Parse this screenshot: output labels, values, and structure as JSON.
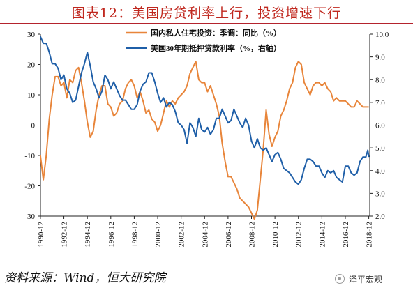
{
  "title": "图表12：美国房贷利率上行，投资增速下行",
  "source": "资料来源：Wind，恒大研究院",
  "brand": {
    "text": "泽平宏观",
    "icon": "wechat-icon"
  },
  "colors": {
    "series1": "#E8853A",
    "series2": "#1F5FA8",
    "title": "#C0281F"
  },
  "chart_data": {
    "type": "line",
    "grid": false,
    "legend_position": "top-center",
    "x_ticks": [
      "1990-12",
      "1992-12",
      "1994-12",
      "1996-12",
      "1998-12",
      "2000-12",
      "2002-12",
      "2004-12",
      "2006-12",
      "2008-12",
      "2010-12",
      "2012-12",
      "2014-12",
      "2016-12",
      "2018-12"
    ],
    "x_range": [
      1990.92,
      2019.0
    ],
    "y_left": {
      "ticks": [
        30,
        20,
        10,
        0,
        -10,
        -20,
        -30
      ],
      "range": [
        -30,
        30
      ]
    },
    "y_right": {
      "ticks": [
        "10.0",
        "9.0",
        "8.0",
        "7.0",
        "6.0",
        "5.0",
        "4.0",
        "3.0",
        "2.0"
      ],
      "range": [
        2.0,
        10.0
      ]
    },
    "series": [
      {
        "name": "国内私人住宅投资：季调：同比（%）",
        "axis": "left",
        "points": [
          [
            "1990-12",
            -10
          ],
          [
            "1991-03",
            -18
          ],
          [
            "1991-06",
            -10
          ],
          [
            "1991-09",
            2
          ],
          [
            "1991-12",
            10
          ],
          [
            "1992-03",
            16
          ],
          [
            "1992-06",
            16
          ],
          [
            "1992-09",
            13
          ],
          [
            "1992-12",
            14
          ],
          [
            "1993-03",
            9
          ],
          [
            "1993-06",
            15
          ],
          [
            "1993-09",
            14
          ],
          [
            "1993-12",
            18
          ],
          [
            "1994-03",
            19
          ],
          [
            "1994-06",
            14
          ],
          [
            "1994-09",
            8
          ],
          [
            "1994-12",
            1
          ],
          [
            "1995-03",
            -4
          ],
          [
            "1995-06",
            -2
          ],
          [
            "1995-09",
            5
          ],
          [
            "1995-12",
            10
          ],
          [
            "1996-03",
            13
          ],
          [
            "1996-06",
            13
          ],
          [
            "1996-09",
            7
          ],
          [
            "1996-12",
            6
          ],
          [
            "1997-03",
            3
          ],
          [
            "1997-06",
            4
          ],
          [
            "1997-09",
            7
          ],
          [
            "1997-12",
            8
          ],
          [
            "1998-03",
            12
          ],
          [
            "1998-06",
            14
          ],
          [
            "1998-09",
            15
          ],
          [
            "1998-12",
            13
          ],
          [
            "1999-03",
            9
          ],
          [
            "1999-06",
            11
          ],
          [
            "1999-09",
            8
          ],
          [
            "1999-12",
            4
          ],
          [
            "2000-03",
            5
          ],
          [
            "2000-06",
            2
          ],
          [
            "2000-09",
            1
          ],
          [
            "2000-12",
            -2
          ],
          [
            "2001-03",
            0
          ],
          [
            "2001-06",
            4
          ],
          [
            "2001-09",
            8
          ],
          [
            "2001-12",
            6
          ],
          [
            "2002-03",
            8
          ],
          [
            "2002-06",
            7
          ],
          [
            "2002-09",
            9
          ],
          [
            "2002-12",
            10
          ],
          [
            "2003-03",
            11
          ],
          [
            "2003-06",
            13
          ],
          [
            "2003-09",
            17
          ],
          [
            "2003-12",
            19
          ],
          [
            "2004-03",
            21
          ],
          [
            "2004-06",
            15
          ],
          [
            "2004-09",
            14
          ],
          [
            "2004-12",
            14
          ],
          [
            "2005-03",
            11
          ],
          [
            "2005-06",
            13
          ],
          [
            "2005-09",
            10
          ],
          [
            "2005-12",
            7
          ],
          [
            "2006-03",
            3
          ],
          [
            "2006-06",
            -6
          ],
          [
            "2006-09",
            -12
          ],
          [
            "2006-12",
            -17
          ],
          [
            "2007-03",
            -17
          ],
          [
            "2007-06",
            -19
          ],
          [
            "2007-09",
            -21
          ],
          [
            "2007-12",
            -24
          ],
          [
            "2008-03",
            -25
          ],
          [
            "2008-06",
            -26
          ],
          [
            "2008-09",
            -27
          ],
          [
            "2008-12",
            -29
          ],
          [
            "2009-03",
            -31
          ],
          [
            "2009-06",
            -28
          ],
          [
            "2009-09",
            -18
          ],
          [
            "2009-12",
            -8
          ],
          [
            "2010-03",
            5
          ],
          [
            "2010-06",
            -3
          ],
          [
            "2010-09",
            -7
          ],
          [
            "2010-12",
            -4
          ],
          [
            "2011-03",
            -2
          ],
          [
            "2011-06",
            3
          ],
          [
            "2011-09",
            5
          ],
          [
            "2011-12",
            8
          ],
          [
            "2012-03",
            12
          ],
          [
            "2012-06",
            14
          ],
          [
            "2012-09",
            19
          ],
          [
            "2012-12",
            21
          ],
          [
            "2013-03",
            20
          ],
          [
            "2013-06",
            14
          ],
          [
            "2013-09",
            12
          ],
          [
            "2013-12",
            10
          ],
          [
            "2014-03",
            13
          ],
          [
            "2014-06",
            14
          ],
          [
            "2014-09",
            14
          ],
          [
            "2014-12",
            13
          ],
          [
            "2015-03",
            14
          ],
          [
            "2015-06",
            12
          ],
          [
            "2015-09",
            11
          ],
          [
            "2015-12",
            8
          ],
          [
            "2016-03",
            9
          ],
          [
            "2016-06",
            8
          ],
          [
            "2016-09",
            8
          ],
          [
            "2016-12",
            8
          ],
          [
            "2017-03",
            7
          ],
          [
            "2017-06",
            6
          ],
          [
            "2017-09",
            6
          ],
          [
            "2017-12",
            8
          ],
          [
            "2018-03",
            7
          ],
          [
            "2018-06",
            6
          ],
          [
            "2018-12",
            6
          ]
        ]
      },
      {
        "name": "美国30年期抵押贷款利率（%，右轴）",
        "axis": "right",
        "points": [
          [
            "1990-12",
            9.9
          ],
          [
            "1991-03",
            9.6
          ],
          [
            "1991-06",
            9.6
          ],
          [
            "1991-09",
            9.2
          ],
          [
            "1991-12",
            8.7
          ],
          [
            "1992-03",
            8.7
          ],
          [
            "1992-06",
            8.5
          ],
          [
            "1992-09",
            8.0
          ],
          [
            "1992-12",
            8.2
          ],
          [
            "1993-03",
            7.6
          ],
          [
            "1993-06",
            7.4
          ],
          [
            "1993-09",
            7.0
          ],
          [
            "1993-12",
            7.1
          ],
          [
            "1994-03",
            7.7
          ],
          [
            "1994-06",
            8.3
          ],
          [
            "1994-09",
            8.7
          ],
          [
            "1994-12",
            9.2
          ],
          [
            "1995-03",
            8.6
          ],
          [
            "1995-06",
            7.9
          ],
          [
            "1995-09",
            7.6
          ],
          [
            "1995-12",
            7.2
          ],
          [
            "1996-03",
            7.5
          ],
          [
            "1996-06",
            8.2
          ],
          [
            "1996-09",
            8.0
          ],
          [
            "1996-12",
            7.6
          ],
          [
            "1997-03",
            7.9
          ],
          [
            "1997-06",
            7.6
          ],
          [
            "1997-09",
            7.3
          ],
          [
            "1997-12",
            7.1
          ],
          [
            "1998-03",
            7.1
          ],
          [
            "1998-06",
            6.9
          ],
          [
            "1998-09",
            6.7
          ],
          [
            "1998-12",
            6.7
          ],
          [
            "1999-03",
            6.9
          ],
          [
            "1999-06",
            7.5
          ],
          [
            "1999-09",
            7.8
          ],
          [
            "1999-12",
            7.9
          ],
          [
            "2000-03",
            8.3
          ],
          [
            "2000-06",
            8.3
          ],
          [
            "2000-09",
            7.9
          ],
          [
            "2000-12",
            7.4
          ],
          [
            "2001-03",
            7.0
          ],
          [
            "2001-06",
            7.2
          ],
          [
            "2001-09",
            6.8
          ],
          [
            "2001-12",
            7.0
          ],
          [
            "2002-03",
            6.9
          ],
          [
            "2002-06",
            6.6
          ],
          [
            "2002-09",
            6.1
          ],
          [
            "2002-12",
            6.0
          ],
          [
            "2003-03",
            5.8
          ],
          [
            "2003-06",
            5.2
          ],
          [
            "2003-09",
            6.1
          ],
          [
            "2003-12",
            5.9
          ],
          [
            "2004-03",
            5.5
          ],
          [
            "2004-06",
            6.3
          ],
          [
            "2004-09",
            5.8
          ],
          [
            "2004-12",
            5.7
          ],
          [
            "2005-03",
            5.9
          ],
          [
            "2005-06",
            5.6
          ],
          [
            "2005-09",
            5.8
          ],
          [
            "2005-12",
            6.3
          ],
          [
            "2006-03",
            6.3
          ],
          [
            "2006-06",
            6.7
          ],
          [
            "2006-09",
            6.4
          ],
          [
            "2006-12",
            6.1
          ],
          [
            "2007-03",
            6.2
          ],
          [
            "2007-06",
            6.7
          ],
          [
            "2007-09",
            6.4
          ],
          [
            "2007-12",
            6.1
          ],
          [
            "2008-03",
            5.9
          ],
          [
            "2008-06",
            6.3
          ],
          [
            "2008-09",
            6.0
          ],
          [
            "2008-12",
            5.3
          ],
          [
            "2009-03",
            5.0
          ],
          [
            "2009-06",
            5.4
          ],
          [
            "2009-09",
            5.0
          ],
          [
            "2009-12",
            4.9
          ],
          [
            "2010-03",
            5.0
          ],
          [
            "2010-06",
            4.7
          ],
          [
            "2010-09",
            4.4
          ],
          [
            "2010-12",
            4.7
          ],
          [
            "2011-03",
            4.8
          ],
          [
            "2011-06",
            4.5
          ],
          [
            "2011-09",
            4.1
          ],
          [
            "2011-12",
            4.0
          ],
          [
            "2012-03",
            3.9
          ],
          [
            "2012-06",
            3.7
          ],
          [
            "2012-09",
            3.5
          ],
          [
            "2012-12",
            3.4
          ],
          [
            "2013-03",
            3.6
          ],
          [
            "2013-06",
            4.1
          ],
          [
            "2013-09",
            4.5
          ],
          [
            "2013-12",
            4.5
          ],
          [
            "2014-03",
            4.4
          ],
          [
            "2014-06",
            4.2
          ],
          [
            "2014-09",
            4.2
          ],
          [
            "2014-12",
            3.9
          ],
          [
            "2015-03",
            3.7
          ],
          [
            "2015-06",
            4.0
          ],
          [
            "2015-09",
            3.9
          ],
          [
            "2015-12",
            4.0
          ],
          [
            "2016-03",
            3.7
          ],
          [
            "2016-06",
            3.6
          ],
          [
            "2016-09",
            3.5
          ],
          [
            "2016-12",
            4.2
          ],
          [
            "2017-03",
            4.2
          ],
          [
            "2017-06",
            3.9
          ],
          [
            "2017-09",
            3.8
          ],
          [
            "2017-12",
            3.9
          ],
          [
            "2018-03",
            4.4
          ],
          [
            "2018-06",
            4.6
          ],
          [
            "2018-09",
            4.6
          ],
          [
            "2018-11",
            4.9
          ],
          [
            "2018-12",
            4.6
          ]
        ]
      }
    ]
  }
}
